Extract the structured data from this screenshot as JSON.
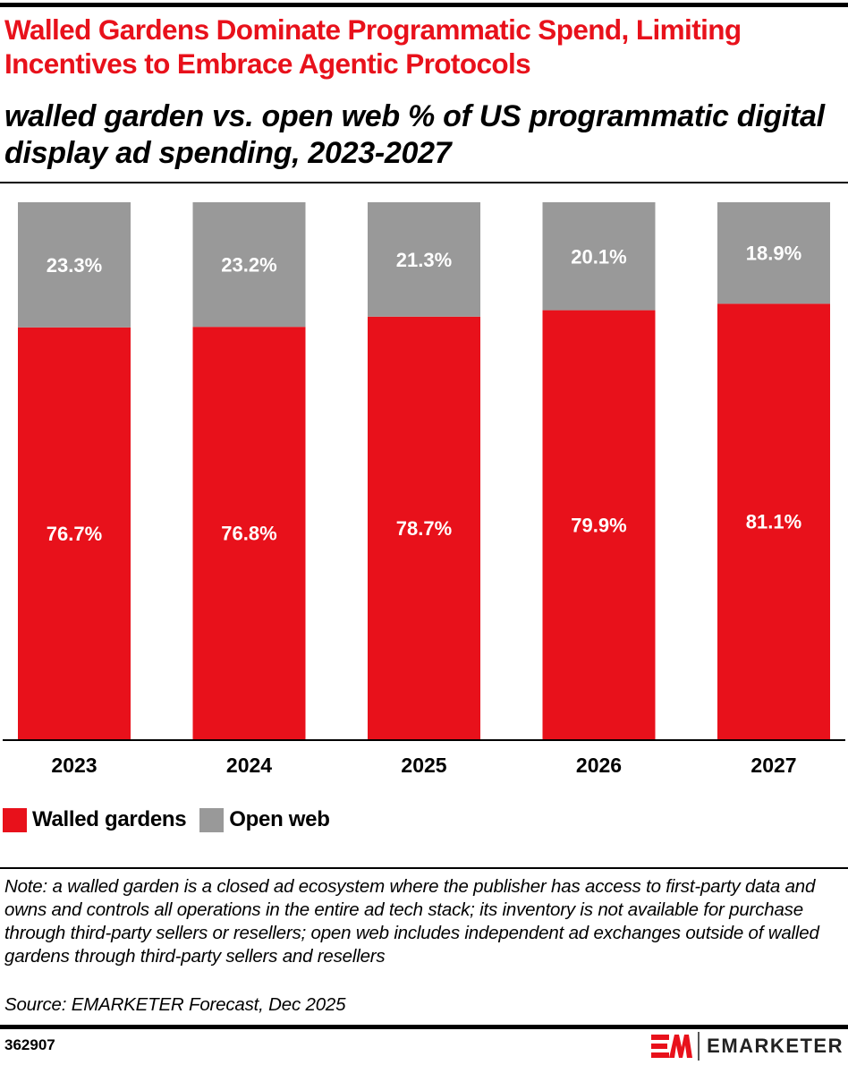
{
  "header": {
    "title": "Walled Gardens Dominate Programmatic Spend, Limiting Incentives to Embrace Agentic Protocols",
    "subtitle": "walled garden vs. open web % of US programmatic digital display ad spending, 2023-2027"
  },
  "chart_data": {
    "type": "bar",
    "stacked": true,
    "title": "Walled Gardens Dominate Programmatic Spend, Limiting Incentives to Embrace Agentic Protocols",
    "subtitle": "walled garden vs. open web % of US programmatic digital display ad spending, 2023-2027",
    "xlabel": "",
    "ylabel": "",
    "ylim": [
      0,
      100
    ],
    "unit": "%",
    "grid": false,
    "legend_position": "bottom-left",
    "categories": [
      "2023",
      "2024",
      "2025",
      "2026",
      "2027"
    ],
    "series": [
      {
        "name": "Walled gardens",
        "color": "#e8111b",
        "values": [
          76.7,
          76.8,
          78.7,
          79.9,
          81.1
        ],
        "labels": [
          "76.7%",
          "76.8%",
          "78.7%",
          "79.9%",
          "81.1%"
        ]
      },
      {
        "name": "Open web",
        "color": "#999999",
        "values": [
          23.3,
          23.2,
          21.3,
          20.1,
          18.9
        ],
        "labels": [
          "23.3%",
          "23.2%",
          "21.3%",
          "20.1%",
          "18.9%"
        ]
      }
    ]
  },
  "legend": [
    {
      "label": "Walled gardens",
      "color": "#e8111b"
    },
    {
      "label": "Open web",
      "color": "#999999"
    }
  ],
  "footer": {
    "note": "Note: a walled garden is a closed ad ecosystem where the publisher has access to first-party data and owns and controls all operations in the entire ad tech stack; its inventory is not available for purchase through third-party sellers or resellers; open web includes independent ad exchanges outside of walled gardens through third-party sellers and resellers",
    "source": "Source: EMARKETER Forecast, Dec 2025",
    "chart_id": "362907",
    "brand_name": "EMARKETER",
    "brand_icon": "emarketer-logo-icon"
  },
  "colors": {
    "accent": "#e8111b",
    "secondary": "#999999",
    "text": "#000000"
  }
}
